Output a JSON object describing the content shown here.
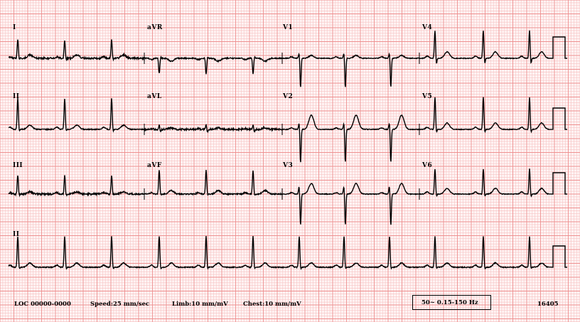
{
  "leads": {
    "row1": [
      "I",
      "aVR",
      "V1",
      "V4"
    ],
    "row2": [
      "II",
      "aVL",
      "V2",
      "V5"
    ],
    "row3": [
      "III",
      "aVF",
      "V3",
      "V6"
    ],
    "rhythm": "II"
  },
  "footer": {
    "location": "LOC 00000-0000",
    "speed": "Speed:25 mm/sec",
    "limb": "Limb:10 mm/mV",
    "chest": "Chest:10 mm/mV",
    "filter": "50~ 0.15-150 Hz",
    "code": "16405"
  },
  "colors": {
    "paper": "#fff5f5",
    "minor_grid": "#f7c4c4",
    "major_grid": "#ee9090",
    "trace": "#000000"
  }
}
